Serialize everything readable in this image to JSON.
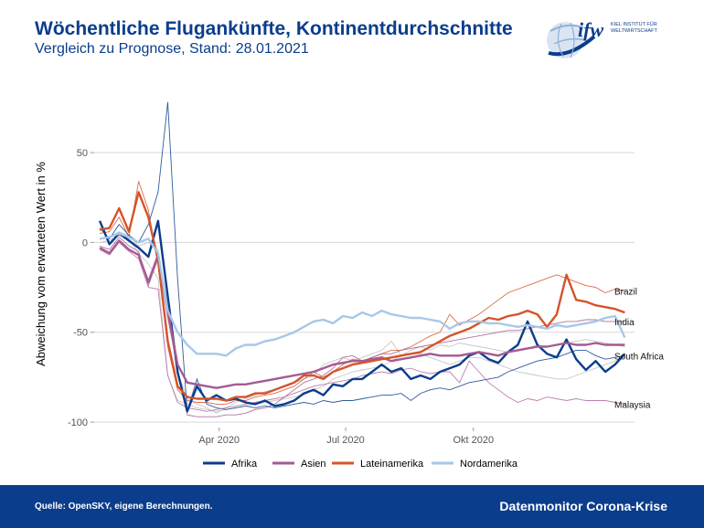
{
  "header": {
    "title": "Wöchentliche Flugankünfte, Kontinentdurchschnitte",
    "subtitle": "Vergleich zu Prognose, Stand: 28.01.2021"
  },
  "logo": {
    "wordmark": "ifw",
    "line1": "KIEL INSTITUT FÜR",
    "line2": "WELTWIRTSCHAFT"
  },
  "footer": {
    "source": "Quelle: OpenSKY, eigene Berechnungen.",
    "brand": "Datenmonitor Corona-Krise"
  },
  "chart_data": {
    "type": "line",
    "ylabel": "Abweichung vom erwarteten Wert in %",
    "xlabel": "",
    "ylim": [
      -103,
      80
    ],
    "xlim": [
      "2020-01-02",
      "2021-01-25"
    ],
    "y_ticks": [
      50,
      0,
      -50,
      -100
    ],
    "x_ticks": [
      {
        "date": "2020-04-01",
        "label": "Apr 2020"
      },
      {
        "date": "2020-07-01",
        "label": "Jul 2020"
      },
      {
        "date": "2020-10-01",
        "label": "Okt 2020"
      }
    ],
    "grid": "horizontal",
    "legend_position": "bottom",
    "series": [
      {
        "name": "Afrika",
        "color": "#0b3d8c",
        "width": 2.4,
        "key": "afrika",
        "dates": [
          "2020-01-06",
          "2020-01-13",
          "2020-01-20",
          "2020-01-27",
          "2020-02-03",
          "2020-02-10",
          "2020-02-17",
          "2020-02-24",
          "2020-03-02",
          "2020-03-09",
          "2020-03-16",
          "2020-03-23",
          "2020-03-30",
          "2020-04-06",
          "2020-04-13",
          "2020-04-20",
          "2020-04-27",
          "2020-05-04",
          "2020-05-11",
          "2020-05-18",
          "2020-05-25",
          "2020-06-01",
          "2020-06-08",
          "2020-06-15",
          "2020-06-22",
          "2020-06-29",
          "2020-07-06",
          "2020-07-13",
          "2020-07-20",
          "2020-07-27",
          "2020-08-03",
          "2020-08-10",
          "2020-08-17",
          "2020-08-24",
          "2020-08-31",
          "2020-09-07",
          "2020-09-14",
          "2020-09-21",
          "2020-09-28",
          "2020-10-05",
          "2020-10-12",
          "2020-10-19",
          "2020-10-26",
          "2020-11-02",
          "2020-11-09",
          "2020-11-16",
          "2020-11-23",
          "2020-11-30",
          "2020-12-07",
          "2020-12-14",
          "2020-12-21",
          "2020-12-28",
          "2021-01-04",
          "2021-01-11",
          "2021-01-18"
        ],
        "values": [
          12,
          -1,
          5,
          1,
          -3,
          -8,
          12,
          -30,
          -72,
          -94,
          -80,
          -88,
          -85,
          -88,
          -87,
          -89,
          -90,
          -88,
          -91,
          -90,
          -88,
          -84,
          -82,
          -85,
          -79,
          -80,
          -76,
          -76,
          -72,
          -68,
          -72,
          -70,
          -76,
          -74,
          -76,
          -72,
          -70,
          -68,
          -63,
          -61,
          -65,
          -67,
          -61,
          -57,
          -44,
          -57,
          -62,
          -64,
          -54,
          -65,
          -71,
          -66,
          -72,
          -68,
          -62
        ]
      },
      {
        "name": "Asien",
        "color": "#a55a92",
        "width": 2.4,
        "key": "asien",
        "dates": [
          "2020-01-06",
          "2020-01-13",
          "2020-01-20",
          "2020-01-27",
          "2020-02-03",
          "2020-02-10",
          "2020-02-17",
          "2020-02-24",
          "2020-03-02",
          "2020-03-09",
          "2020-03-16",
          "2020-03-23",
          "2020-03-30",
          "2020-04-06",
          "2020-04-13",
          "2020-04-20",
          "2020-04-27",
          "2020-05-04",
          "2020-05-11",
          "2020-05-18",
          "2020-05-25",
          "2020-06-01",
          "2020-06-08",
          "2020-06-15",
          "2020-06-22",
          "2020-06-29",
          "2020-07-06",
          "2020-07-13",
          "2020-07-20",
          "2020-07-27",
          "2020-08-03",
          "2020-08-10",
          "2020-08-17",
          "2020-08-24",
          "2020-08-31",
          "2020-09-07",
          "2020-09-14",
          "2020-09-21",
          "2020-09-28",
          "2020-10-05",
          "2020-10-12",
          "2020-10-19",
          "2020-10-26",
          "2020-11-02",
          "2020-11-09",
          "2020-11-16",
          "2020-11-23",
          "2020-11-30",
          "2020-12-07",
          "2020-12-14",
          "2020-12-21",
          "2020-12-28",
          "2021-01-04",
          "2021-01-11",
          "2021-01-18"
        ],
        "values": [
          -3,
          -6,
          1,
          -4,
          -7,
          -22,
          -7,
          -38,
          -68,
          -78,
          -79,
          -80,
          -81,
          -80,
          -79,
          -79,
          -78,
          -77,
          -76,
          -75,
          -74,
          -73,
          -72,
          -70,
          -68,
          -67,
          -66,
          -66,
          -65,
          -64,
          -66,
          -65,
          -64,
          -63,
          -62,
          -63,
          -63,
          -63,
          -62,
          -61,
          -62,
          -63,
          -61,
          -60,
          -59,
          -58,
          -58,
          -57,
          -56,
          -57,
          -57,
          -56,
          -57,
          -57,
          -57
        ]
      },
      {
        "name": "Lateinamerika",
        "color": "#d4542a",
        "width": 2.4,
        "key": "latein",
        "dates": [
          "2020-01-06",
          "2020-01-13",
          "2020-01-20",
          "2020-01-27",
          "2020-02-03",
          "2020-02-10",
          "2020-02-17",
          "2020-02-24",
          "2020-03-02",
          "2020-03-09",
          "2020-03-16",
          "2020-03-23",
          "2020-03-30",
          "2020-04-06",
          "2020-04-13",
          "2020-04-20",
          "2020-04-27",
          "2020-05-04",
          "2020-05-11",
          "2020-05-18",
          "2020-05-25",
          "2020-06-01",
          "2020-06-08",
          "2020-06-15",
          "2020-06-22",
          "2020-06-29",
          "2020-07-06",
          "2020-07-13",
          "2020-07-20",
          "2020-07-27",
          "2020-08-03",
          "2020-08-10",
          "2020-08-17",
          "2020-08-24",
          "2020-08-31",
          "2020-09-07",
          "2020-09-14",
          "2020-09-21",
          "2020-09-28",
          "2020-10-05",
          "2020-10-12",
          "2020-10-19",
          "2020-10-26",
          "2020-11-02",
          "2020-11-09",
          "2020-11-16",
          "2020-11-23",
          "2020-11-30",
          "2020-12-07",
          "2020-12-14",
          "2020-12-21",
          "2020-12-28",
          "2021-01-04",
          "2021-01-11",
          "2021-01-18"
        ],
        "values": [
          7,
          8,
          19,
          6,
          28,
          14,
          -10,
          -55,
          -80,
          -86,
          -87,
          -87,
          -87,
          -88,
          -86,
          -86,
          -84,
          -84,
          -82,
          -80,
          -78,
          -74,
          -74,
          -76,
          -72,
          -70,
          -68,
          -67,
          -66,
          -65,
          -64,
          -63,
          -62,
          -61,
          -58,
          -55,
          -52,
          -50,
          -48,
          -45,
          -42,
          -43,
          -41,
          -40,
          -38,
          -40,
          -47,
          -40,
          -18,
          -32,
          -33,
          -35,
          -36,
          -37,
          -39
        ]
      },
      {
        "name": "Nordamerika",
        "color": "#a6c8e8",
        "width": 2.4,
        "key": "nord",
        "dates": [
          "2020-01-06",
          "2020-01-13",
          "2020-01-20",
          "2020-01-27",
          "2020-02-03",
          "2020-02-10",
          "2020-02-17",
          "2020-02-24",
          "2020-03-02",
          "2020-03-09",
          "2020-03-16",
          "2020-03-23",
          "2020-03-30",
          "2020-04-06",
          "2020-04-13",
          "2020-04-20",
          "2020-04-27",
          "2020-05-04",
          "2020-05-11",
          "2020-05-18",
          "2020-05-25",
          "2020-06-01",
          "2020-06-08",
          "2020-06-15",
          "2020-06-22",
          "2020-06-29",
          "2020-07-06",
          "2020-07-13",
          "2020-07-20",
          "2020-07-27",
          "2020-08-03",
          "2020-08-10",
          "2020-08-17",
          "2020-08-24",
          "2020-08-31",
          "2020-09-07",
          "2020-09-14",
          "2020-09-21",
          "2020-09-28",
          "2020-10-05",
          "2020-10-12",
          "2020-10-19",
          "2020-10-26",
          "2020-11-02",
          "2020-11-09",
          "2020-11-16",
          "2020-11-23",
          "2020-11-30",
          "2020-12-07",
          "2020-12-14",
          "2020-12-21",
          "2020-12-28",
          "2021-01-04",
          "2021-01-11",
          "2021-01-18"
        ],
        "values": [
          2,
          3,
          5,
          3,
          0,
          2,
          -6,
          -38,
          -50,
          -57,
          -62,
          -62,
          -62,
          -63,
          -59,
          -57,
          -57,
          -55,
          -54,
          -52,
          -50,
          -47,
          -44,
          -43,
          -45,
          -41,
          -42,
          -39,
          -41,
          -38,
          -40,
          -41,
          -42,
          -42,
          -43,
          -44,
          -48,
          -45,
          -44,
          -44,
          -45,
          -45,
          -46,
          -47,
          -46,
          -47,
          -48,
          -46,
          -47,
          -46,
          -45,
          -44,
          -42,
          -41,
          -53
        ]
      }
    ],
    "country_lines": [
      {
        "label": "Brazil",
        "color": "#d4542a",
        "width": 0.9,
        "values": [
          5,
          6,
          14,
          3,
          34,
          18,
          -12,
          -58,
          -82,
          -88,
          -89,
          -89,
          -90,
          -90,
          -88,
          -88,
          -86,
          -85,
          -84,
          -82,
          -80,
          -76,
          -72,
          -75,
          -72,
          -68,
          -65,
          -66,
          -64,
          -62,
          -60,
          -60,
          -58,
          -55,
          -52,
          -50,
          -40,
          -46,
          -43,
          -40,
          -36,
          -32,
          -28,
          -26,
          -24,
          -22,
          -20,
          -18,
          -20,
          -22,
          -24,
          -25,
          -28,
          -26,
          -27
        ]
      },
      {
        "label": "India",
        "color": "#a55a92",
        "width": 0.9,
        "values": [
          -2,
          -4,
          3,
          -2,
          -5,
          -24,
          -9,
          -42,
          -70,
          -96,
          -97,
          -97,
          -97,
          -96,
          -96,
          -95,
          -93,
          -92,
          -90,
          -86,
          -82,
          -78,
          -76,
          -74,
          -70,
          -64,
          -63,
          -66,
          -64,
          -62,
          -62,
          -60,
          -59,
          -58,
          -57,
          -56,
          -55,
          -54,
          -53,
          -52,
          -51,
          -50,
          -49,
          -49,
          -48,
          -47,
          -46,
          -45,
          -44,
          -44,
          -43,
          -43,
          -44,
          -44,
          -44
        ]
      },
      {
        "label": "South Africa",
        "color": "#0b3d8c",
        "width": 0.9,
        "values": [
          8,
          2,
          10,
          4,
          0,
          10,
          28,
          78,
          -20,
          -94,
          -76,
          -90,
          -92,
          -93,
          -92,
          -91,
          -92,
          -91,
          -92,
          -91,
          -90,
          -89,
          -90,
          -88,
          -89,
          -88,
          -88,
          -87,
          -86,
          -85,
          -85,
          -84,
          -88,
          -84,
          -82,
          -81,
          -82,
          -80,
          -78,
          -77,
          -76,
          -75,
          -72,
          -70,
          -68,
          -66,
          -65,
          -64,
          -62,
          -60,
          -60,
          -63,
          -65,
          -64,
          -63
        ]
      },
      {
        "label": "Malaysia",
        "color": "#b06aa0",
        "width": 0.9,
        "values": [
          -4,
          -7,
          0,
          -5,
          -9,
          -25,
          -26,
          -74,
          -89,
          -92,
          -93,
          -94,
          -93,
          -92,
          -91,
          -90,
          -89,
          -88,
          -87,
          -86,
          -84,
          -82,
          -80,
          -79,
          -78,
          -77,
          -76,
          -74,
          -73,
          -72,
          -73,
          -71,
          -70,
          -72,
          -73,
          -72,
          -72,
          -78,
          -66,
          -72,
          -78,
          -82,
          -86,
          -89,
          -87,
          -88,
          -86,
          -87,
          -88,
          -87,
          -88,
          -88,
          -88,
          -89,
          -90
        ]
      }
    ],
    "thin_grey_values": [
      [
        2,
        3,
        6,
        4,
        -2,
        0,
        -4,
        -40,
        -72,
        -87,
        -90,
        -92,
        -95,
        -92,
        -89,
        -87,
        -85,
        -83,
        -82,
        -80,
        -78,
        -76,
        -74,
        -68,
        -66,
        -64,
        -66,
        -64,
        -62,
        -60,
        -55,
        -63,
        -60,
        -58,
        -60,
        -57,
        -58,
        -56,
        -57,
        -58,
        -59,
        -60,
        -61,
        -60,
        -59,
        -57,
        -58,
        -57,
        -56,
        -55,
        -54,
        -55,
        -56,
        -57,
        -58
      ],
      [
        0,
        1,
        4,
        2,
        -6,
        -12,
        -20,
        -74,
        -88,
        -90,
        -92,
        -93,
        -94,
        -93,
        -92,
        -91,
        -90,
        -89,
        -88,
        -87,
        -86,
        -85,
        -82,
        -80,
        -76,
        -74,
        -72,
        -71,
        -70,
        -69,
        -66,
        -63,
        -62,
        -62,
        -64,
        -66,
        -68,
        -66,
        -64,
        -64,
        -66,
        -68,
        -70,
        -72,
        -73,
        -74,
        -75,
        -76,
        -76,
        -74,
        -72,
        -70,
        -68,
        -66,
        -64
      ]
    ]
  }
}
